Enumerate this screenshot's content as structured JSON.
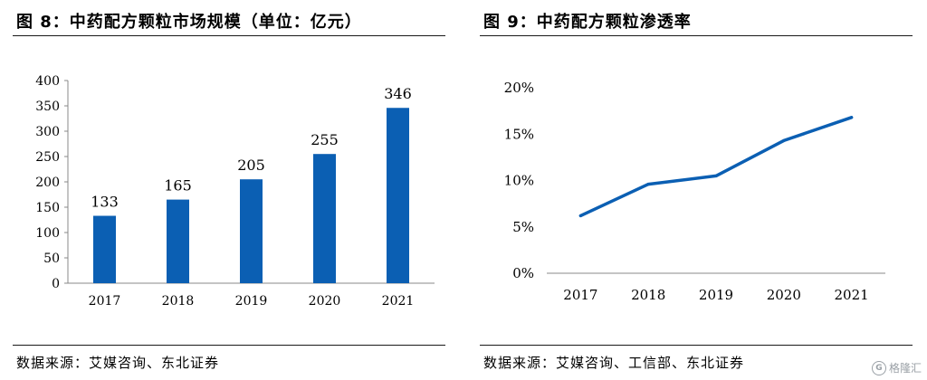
{
  "left": {
    "title": "图 8：中药配方颗粒市场规模（单位：亿元）",
    "source": "数据来源：艾媒咨询、东北证券"
  },
  "right": {
    "title": "图 9：中药配方颗粒渗透率",
    "source": "数据来源：艾媒咨询、工信部、东北证券"
  },
  "watermark": {
    "text": "格隆汇",
    "logo": "G"
  },
  "colors": {
    "bar": "#0b5fb3",
    "line": "#0b5fb3",
    "axis": "#888888",
    "text": "#000000"
  },
  "chart_data": [
    {
      "type": "bar",
      "title": "图 8：中药配方颗粒市场规模（单位：亿元）",
      "categories": [
        "2017",
        "2018",
        "2019",
        "2020",
        "2021"
      ],
      "values": [
        133,
        165,
        205,
        255,
        346
      ],
      "data_labels": [
        "133",
        "165",
        "205",
        "255",
        "346"
      ],
      "y_ticks": [
        0,
        50,
        100,
        150,
        200,
        250,
        300,
        350,
        400
      ],
      "y_tick_labels": [
        "0",
        "50",
        "100",
        "150",
        "200",
        "250",
        "300",
        "350",
        "400"
      ],
      "ylim": [
        0,
        400
      ],
      "grid": false,
      "legend": "none"
    },
    {
      "type": "line",
      "title": "图 9：中药配方颗粒渗透率",
      "categories": [
        "2017",
        "2018",
        "2019",
        "2020",
        "2021"
      ],
      "values": [
        6.2,
        9.6,
        10.5,
        14.3,
        16.8
      ],
      "y_ticks": [
        0,
        5,
        10,
        15,
        20
      ],
      "y_tick_labels": [
        "0%",
        "5%",
        "10%",
        "15%",
        "20%"
      ],
      "ylim": [
        0,
        20
      ],
      "grid": false,
      "legend": "none"
    }
  ]
}
